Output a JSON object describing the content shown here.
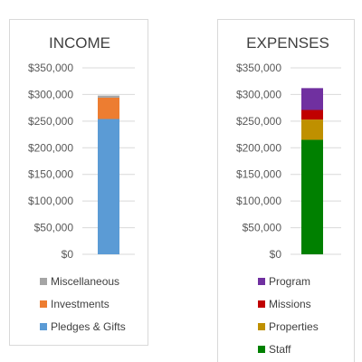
{
  "chart_data": [
    {
      "type": "bar",
      "stacked": true,
      "title": "INCOME",
      "categories": [
        ""
      ],
      "ylim": [
        0,
        350000
      ],
      "yticks": [
        0,
        50000,
        100000,
        150000,
        200000,
        250000,
        300000,
        350000
      ],
      "ytick_labels": [
        "$0",
        "$50,000",
        "$100,000",
        "$150,000",
        "$200,000",
        "$250,000",
        "$300,000",
        "$350,000"
      ],
      "grid": true,
      "legend_position": "bottom",
      "series": [
        {
          "name": "Pledges & Gifts",
          "values": [
            254000
          ],
          "color": "#5b9bd5"
        },
        {
          "name": "Investments",
          "values": [
            40000
          ],
          "color": "#ed7d31"
        },
        {
          "name": "Miscellaneous",
          "values": [
            4000
          ],
          "color": "#a5a5a5"
        }
      ]
    },
    {
      "type": "bar",
      "stacked": true,
      "title": "EXPENSES",
      "categories": [
        ""
      ],
      "ylim": [
        0,
        350000
      ],
      "yticks": [
        0,
        50000,
        100000,
        150000,
        200000,
        250000,
        300000,
        350000
      ],
      "ytick_labels": [
        "$0",
        "$50,000",
        "$100,000",
        "$150,000",
        "$200,000",
        "$250,000",
        "$300,000",
        "$350,000"
      ],
      "grid": true,
      "legend_position": "bottom",
      "series": [
        {
          "name": "Staff",
          "values": [
            215000
          ],
          "color": "#008000"
        },
        {
          "name": "Properties",
          "values": [
            38000
          ],
          "color": "#bf9000"
        },
        {
          "name": "Missions",
          "values": [
            18000
          ],
          "color": "#c00000"
        },
        {
          "name": "Program",
          "values": [
            41000
          ],
          "color": "#7030a0"
        }
      ]
    }
  ]
}
